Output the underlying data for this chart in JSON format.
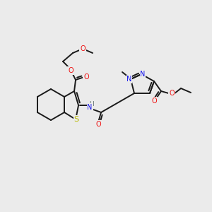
{
  "background_color": "#ebebeb",
  "bond_color": "#1a1a1a",
  "atom_colors": {
    "O": "#ee1111",
    "N": "#1111ee",
    "S": "#b8b800",
    "H": "#607070",
    "C": "#1a1a1a"
  },
  "font_size_atom": 7.0,
  "line_width": 1.4
}
